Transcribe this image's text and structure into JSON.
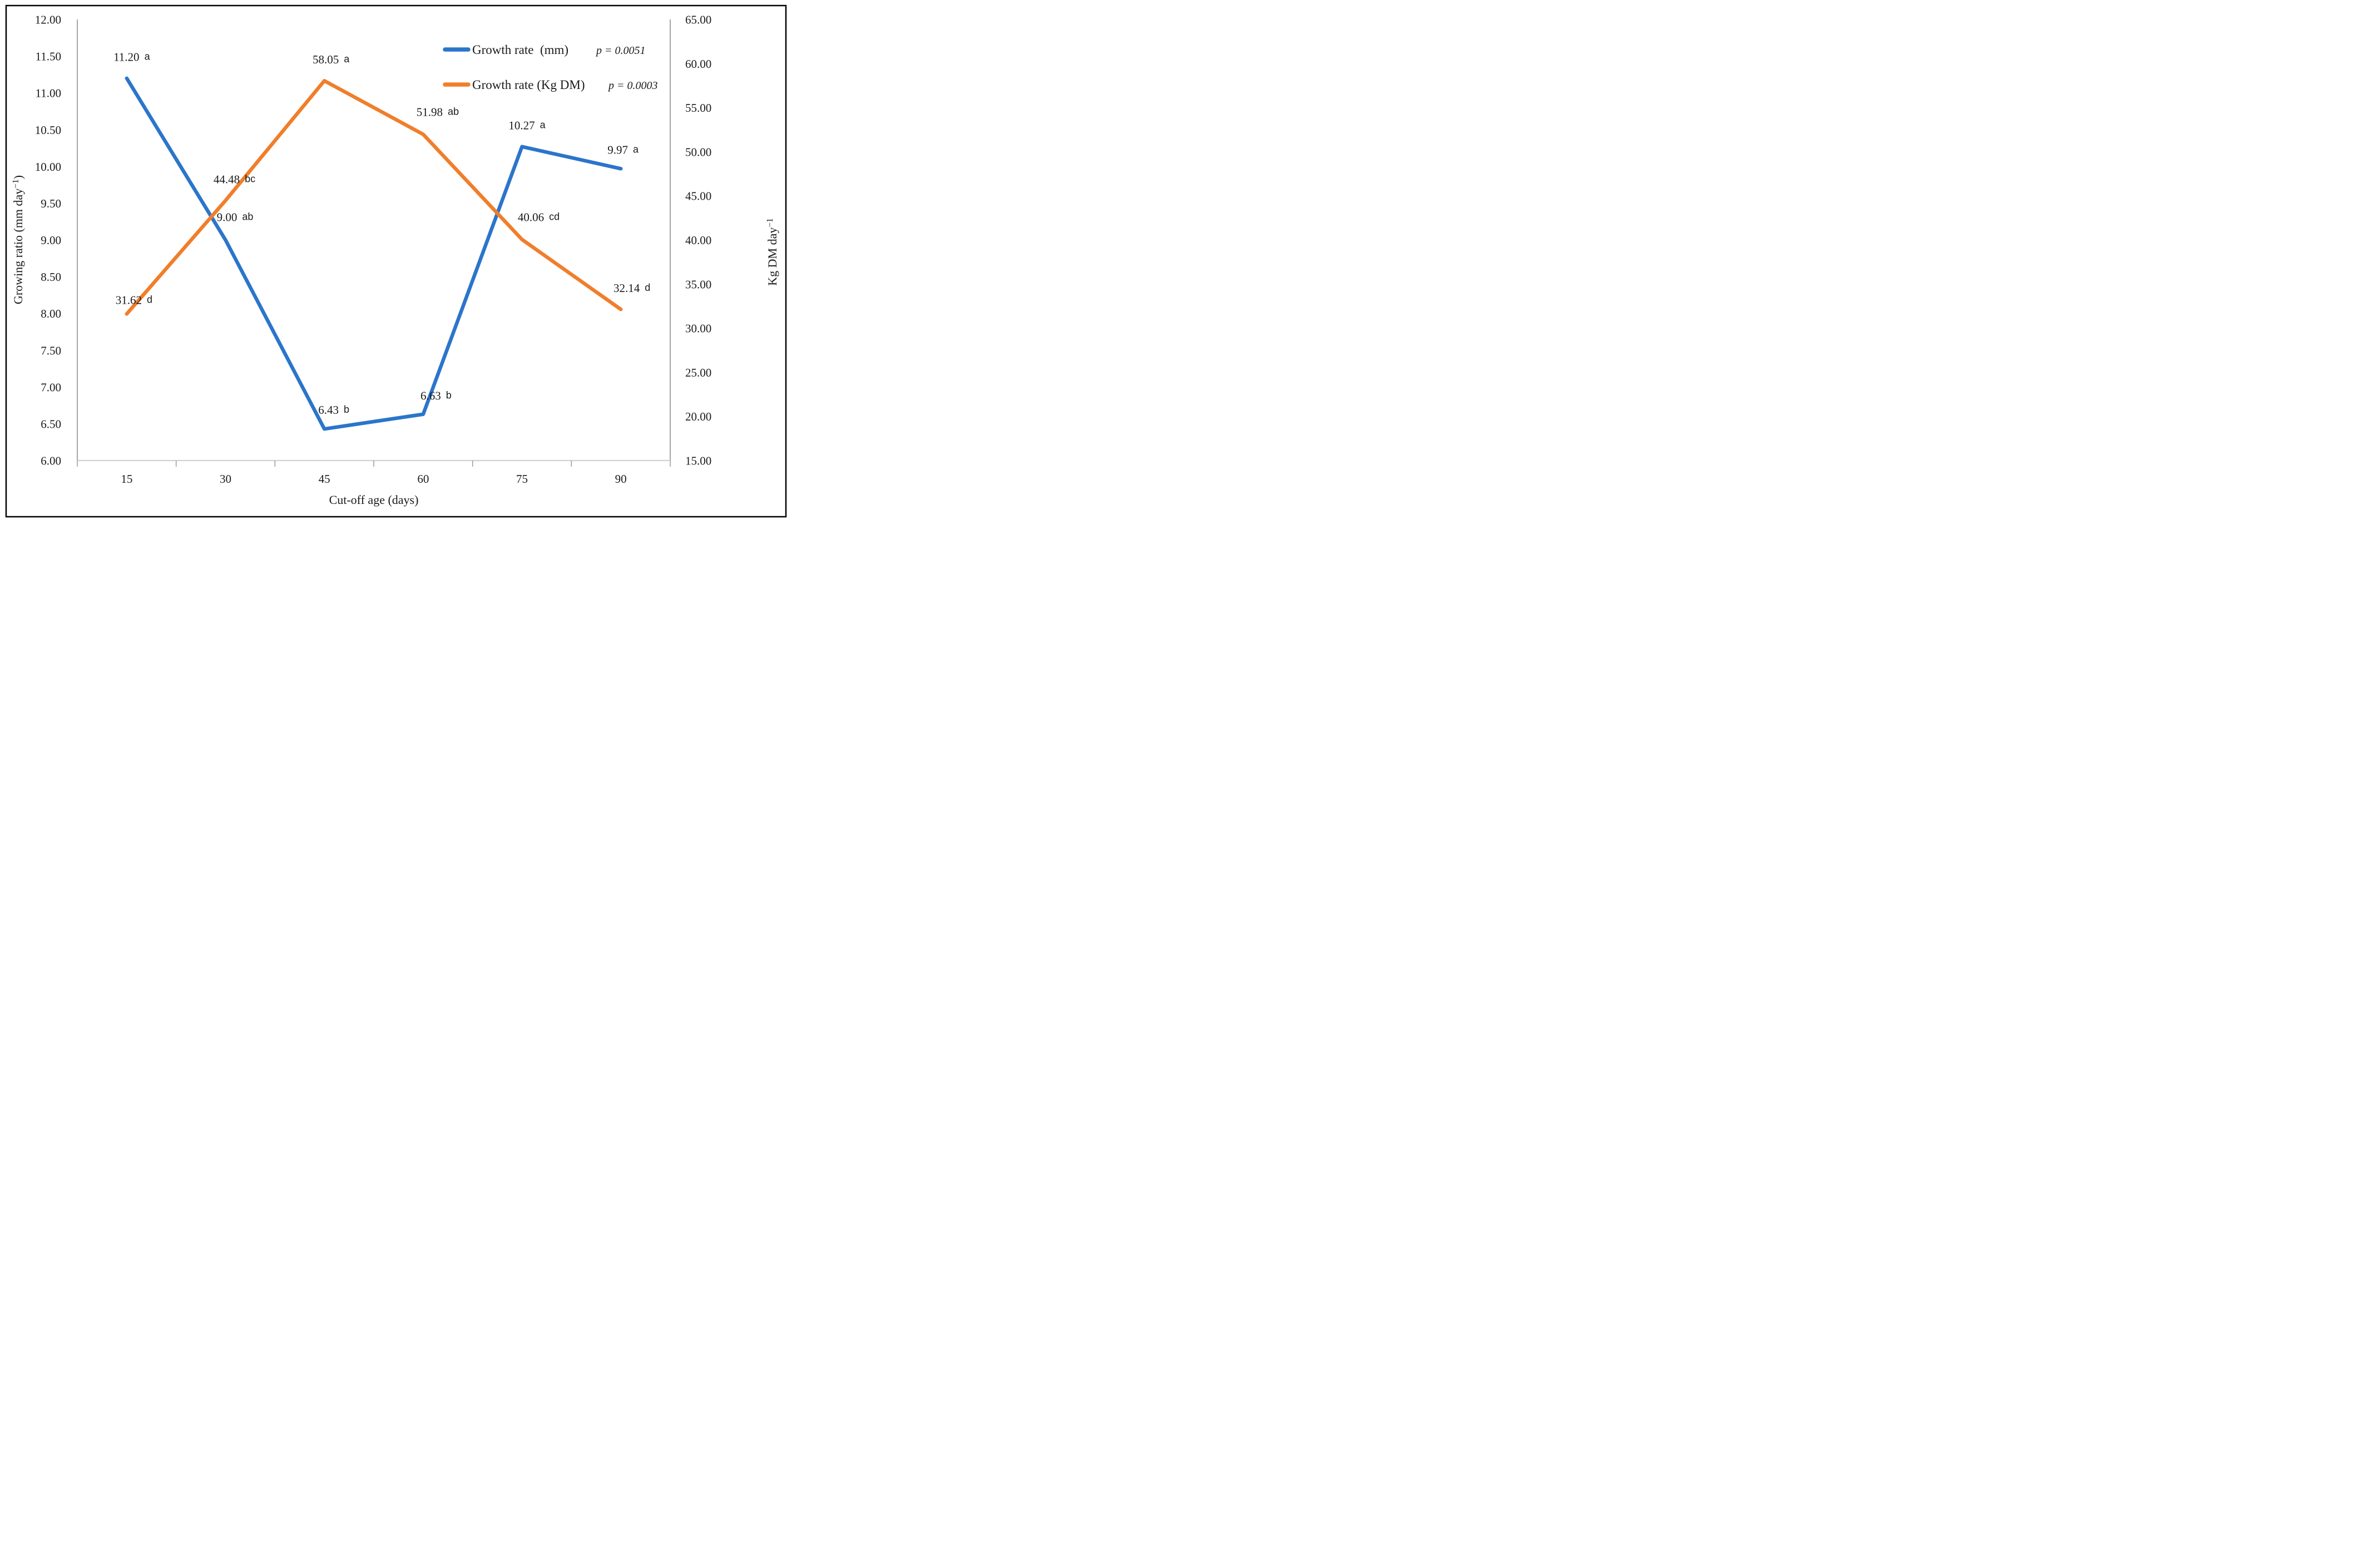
{
  "chart_data": {
    "type": "line",
    "title": "",
    "xlabel": "Cut-off age (days)",
    "ylabel_left": "Growing ratio (mm day⁻¹)",
    "ylabel_right": "Kg DM day⁻¹",
    "categories": [
      15,
      30,
      45,
      60,
      75,
      90
    ],
    "x_tick_labels": [
      "15",
      "30",
      "45",
      "60",
      "75",
      "90"
    ],
    "left_axis": {
      "min": 6.0,
      "max": 12.0,
      "step": 0.5,
      "tick_labels": [
        "12.00",
        "11.50",
        "11.00",
        "10.50",
        "10.00",
        "9.50",
        "9.00",
        "8.50",
        "8.00",
        "7.50",
        "7.00",
        "6.50",
        "6.00"
      ]
    },
    "right_axis": {
      "min": 15.0,
      "max": 65.0,
      "step": 5.0,
      "tick_labels": [
        "65.00",
        "60.00",
        "55.00",
        "50.00",
        "45.00",
        "40.00",
        "35.00",
        "30.00",
        "25.00",
        "20.00",
        "15.00"
      ]
    },
    "grid": false,
    "legend_position": "top-right-inside",
    "series": [
      {
        "name": "Growth rate  (mm)",
        "p_label": "p = 0.0051",
        "axis": "left",
        "color": "#2B75CB",
        "values": [
          11.2,
          9.0,
          6.43,
          6.63,
          10.27,
          9.97
        ],
        "annotations": [
          {
            "value": "11.20",
            "letters": "a"
          },
          {
            "value": "9.00",
            "letters": "ab"
          },
          {
            "value": "6.43",
            "letters": "b"
          },
          {
            "value": "6.63",
            "letters": "b"
          },
          {
            "value": "10.27",
            "letters": "a"
          },
          {
            "value": "9.97",
            "letters": "a"
          }
        ]
      },
      {
        "name": "Growth rate (Kg DM)",
        "p_label": "p = 0.0003",
        "axis": "right",
        "color": "#F07E2B",
        "values": [
          31.62,
          44.48,
          58.05,
          51.98,
          40.06,
          32.14
        ],
        "annotations": [
          {
            "value": "31.62",
            "letters": "d"
          },
          {
            "value": "44.48",
            "letters": "bc"
          },
          {
            "value": "58.05",
            "letters": "a"
          },
          {
            "value": "51.98",
            "letters": "ab"
          },
          {
            "value": "40.06",
            "letters": "cd"
          },
          {
            "value": "32.14",
            "letters": "d"
          }
        ]
      }
    ]
  }
}
